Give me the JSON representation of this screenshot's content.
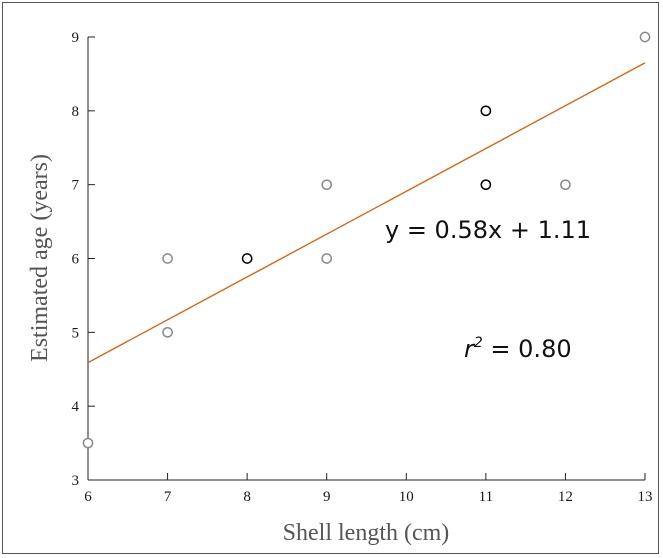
{
  "chart_data": {
    "type": "scatter",
    "xlabel": "Shell length (cm)",
    "ylabel": "Estimated age (years)",
    "xlim": [
      6,
      13
    ],
    "ylim": [
      3,
      9
    ],
    "xticks": [
      "6",
      "7",
      "8",
      "9",
      "10",
      "11",
      "12",
      "13"
    ],
    "yticks": [
      "3",
      "4",
      "5",
      "6",
      "7",
      "8",
      "9"
    ],
    "grid": false,
    "points": [
      {
        "x": 6,
        "y": 3.5,
        "color": "#8a8a8a"
      },
      {
        "x": 7,
        "y": 5,
        "color": "#8a8a8a"
      },
      {
        "x": 7,
        "y": 6,
        "color": "#8a8a8a"
      },
      {
        "x": 8,
        "y": 6,
        "color": "#000000"
      },
      {
        "x": 9,
        "y": 6,
        "color": "#8a8a8a"
      },
      {
        "x": 9,
        "y": 7,
        "color": "#8a8a8a"
      },
      {
        "x": 11,
        "y": 7,
        "color": "#000000"
      },
      {
        "x": 11,
        "y": 8,
        "color": "#000000"
      },
      {
        "x": 12,
        "y": 7,
        "color": "#8a8a8a"
      },
      {
        "x": 13,
        "y": 9,
        "color": "#8a8a8a"
      }
    ],
    "fit_line": {
      "slope": 0.58,
      "intercept": 1.11,
      "color": "#d2691e"
    },
    "annotations": {
      "equation": "y = 0.58x + 1.11",
      "r2_symbol": "r",
      "r2_exponent": "2",
      "r2_rest": " = 0.80"
    }
  }
}
